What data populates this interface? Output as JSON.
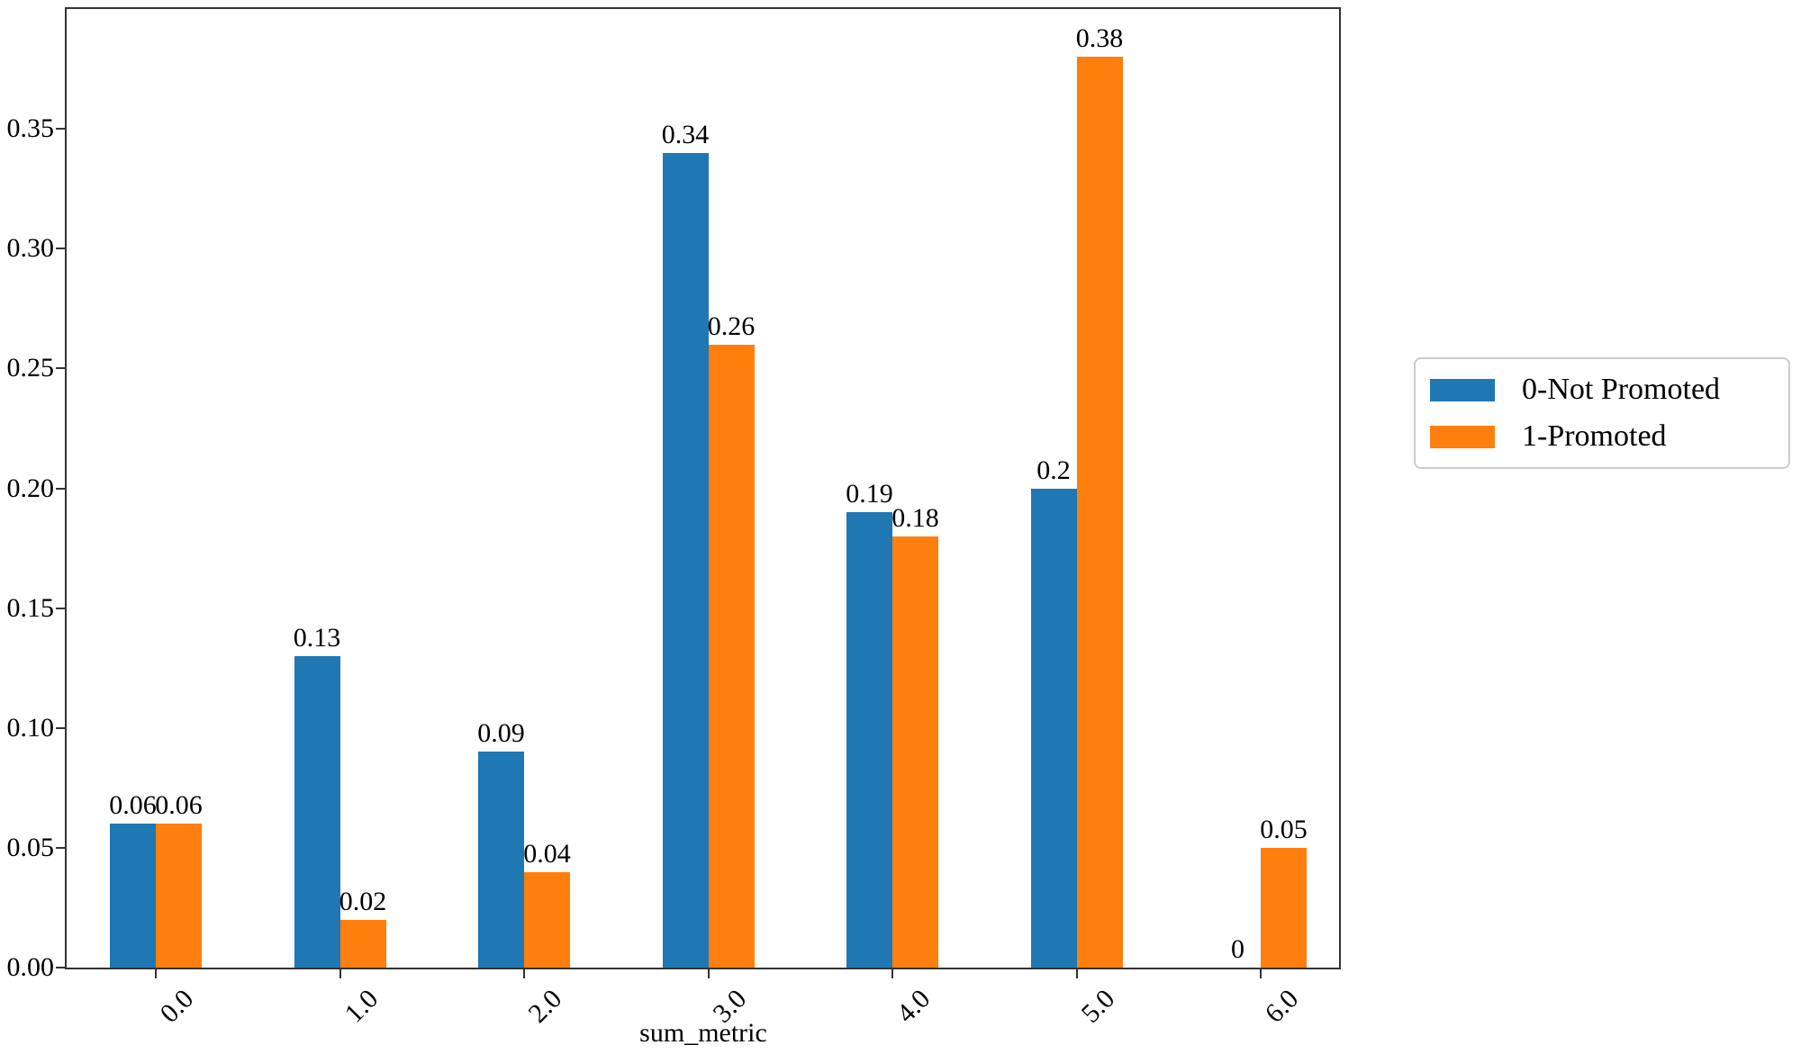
{
  "chart_data": {
    "type": "bar",
    "xlabel": "sum_metric",
    "ylabel": "",
    "categories": [
      "0.0",
      "1.0",
      "2.0",
      "3.0",
      "4.0",
      "5.0",
      "6.0"
    ],
    "series": [
      {
        "name": "0-Not Promoted",
        "color": "#1f77b4",
        "values": [
          0.06,
          0.13,
          0.09,
          0.34,
          0.19,
          0.2,
          0
        ]
      },
      {
        "name": "1-Promoted",
        "color": "#ff7f0e",
        "values": [
          0.06,
          0.02,
          0.04,
          0.26,
          0.18,
          0.38,
          0.05
        ]
      }
    ],
    "bar_value_labels": [
      [
        "0.06",
        "0.13",
        "0.09",
        "0.34",
        "0.19",
        "0.2",
        "0"
      ],
      [
        "0.06",
        "0.02",
        "0.04",
        "0.26",
        "0.18",
        "0.38",
        "0.05"
      ]
    ],
    "y_ticks": [
      "0.00",
      "0.05",
      "0.10",
      "0.15",
      "0.20",
      "0.25",
      "0.30",
      "0.35"
    ],
    "ylim": [
      0,
      0.4
    ],
    "grid": false,
    "legend_position": "right-outside",
    "axis_color": "#333333"
  }
}
